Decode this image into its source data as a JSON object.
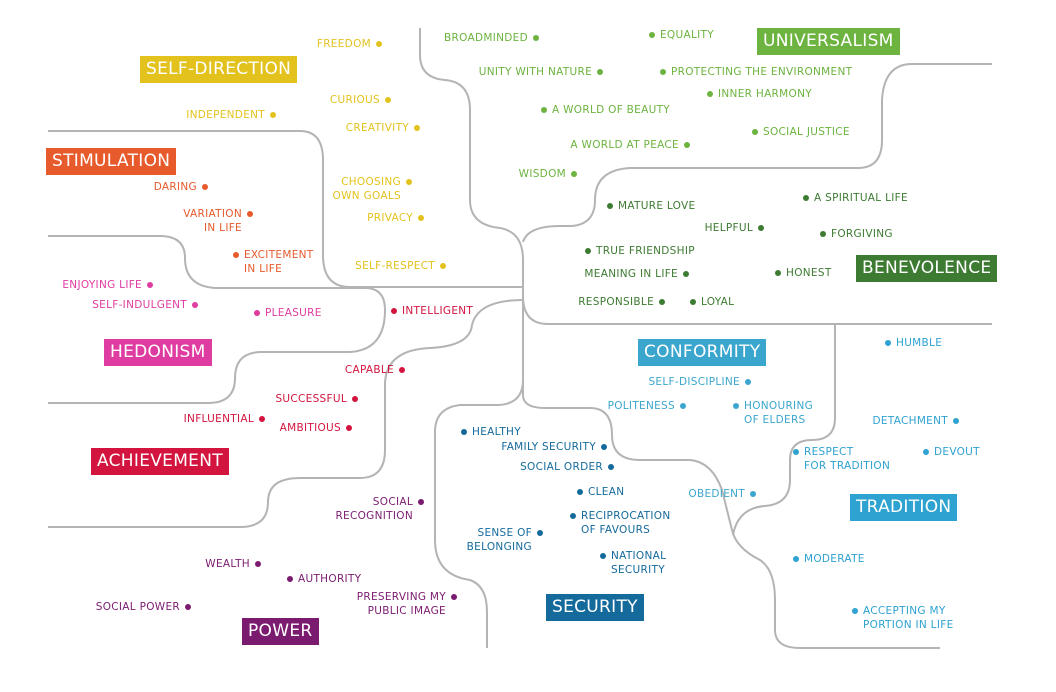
{
  "groups": [
    {
      "title": "SELF-DIRECTION",
      "items": [
        "FREEDOM",
        "CURIOUS",
        "INDEPENDENT",
        "CREATIVITY",
        "CHOOSING\nOWN GOALS",
        "PRIVACY",
        "SELF-RESPECT"
      ]
    },
    {
      "title": "STIMULATION",
      "items": [
        "DARING",
        "VARIATION\nIN LIFE",
        "EXCITEMENT\nIN LIFE"
      ]
    },
    {
      "title": "HEDONISM",
      "items": [
        "ENJOYING LIFE",
        "SELF-INDULGENT",
        "PLEASURE"
      ]
    },
    {
      "title": "ACHIEVEMENT",
      "items": [
        "INTELLIGENT",
        "CAPABLE",
        "SUCCESSFUL",
        "INFLUENTIAL",
        "AMBITIOUS"
      ]
    },
    {
      "title": "POWER",
      "items": [
        "SOCIAL\nRECOGNITION",
        "WEALTH",
        "AUTHORITY",
        "PRESERVING MY\nPUBLIC IMAGE",
        "SOCIAL POWER"
      ]
    },
    {
      "title": "SECURITY",
      "items": [
        "HEALTHY",
        "FAMILY SECURITY",
        "SOCIAL ORDER",
        "CLEAN",
        "RECIPROCATION\nOF FAVOURS",
        "SENSE OF\nBELONGING",
        "NATIONAL\nSECURITY"
      ]
    },
    {
      "title": "CONFORMITY",
      "items": [
        "SELF-DISCIPLINE",
        "POLITENESS",
        "HONOURING\nOF ELDERS",
        "OBEDIENT"
      ]
    },
    {
      "title": "TRADITION",
      "items": [
        "HUMBLE",
        "DETACHMENT",
        "RESPECT\nFOR TRADITION",
        "DEVOUT",
        "MODERATE",
        "ACCEPTING MY\nPORTION IN LIFE"
      ]
    },
    {
      "title": "BENEVOLENCE",
      "items": [
        "MATURE LOVE",
        "A SPIRITUAL LIFE",
        "HELPFUL",
        "FORGIVING",
        "TRUE FRIENDSHIP",
        "MEANING IN LIFE",
        "HONEST",
        "RESPONSIBLE",
        "LOYAL"
      ]
    },
    {
      "title": "UNIVERSALISM",
      "items": [
        "BROADMINDED",
        "EQUALITY",
        "UNITY WITH NATURE",
        "PROTECTING THE ENVIRONMENT",
        "INNER HARMONY",
        "A WORLD OF BEAUTY",
        "SOCIAL JUSTICE",
        "A WORLD AT PEACE",
        "WISDOM"
      ]
    }
  ]
}
